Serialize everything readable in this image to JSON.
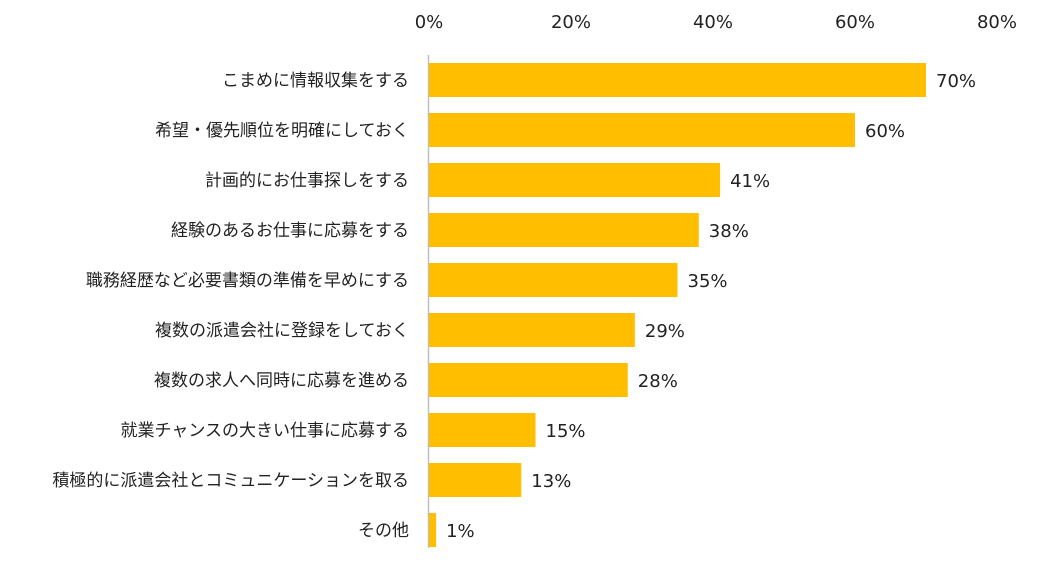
{
  "chart_data": {
    "type": "bar",
    "orientation": "horizontal",
    "categories": [
      "こまめに情報収集をする",
      "希望・優先順位を明確にしておく",
      "計画的にお仕事探しをする",
      "経験のあるお仕事に応募をする",
      "職務経歴など必要書類の準備を早めにする",
      "複数の派遣会社に登録をしておく",
      "複数の求人へ同時に応募を進める",
      "就業チャンスの大きい仕事に応募する",
      "積極的に派遣会社とコミュニケーションを取る",
      "その他"
    ],
    "values": [
      70,
      60,
      41,
      38,
      35,
      29,
      28,
      15,
      13,
      1
    ],
    "value_labels": [
      "70%",
      "60%",
      "41%",
      "38%",
      "35%",
      "29%",
      "28%",
      "15%",
      "13%",
      "1%"
    ],
    "x_ticks": [
      0,
      20,
      40,
      60,
      80
    ],
    "x_tick_labels": [
      "0%",
      "20%",
      "40%",
      "60%",
      "80%"
    ],
    "xlim": [
      0,
      80
    ],
    "x_axis_position": "top",
    "grid": false,
    "legend": "none",
    "bar_color": "#FFBF00",
    "axis_color": "#BFBFBF",
    "title": "",
    "xlabel": "",
    "ylabel": ""
  }
}
